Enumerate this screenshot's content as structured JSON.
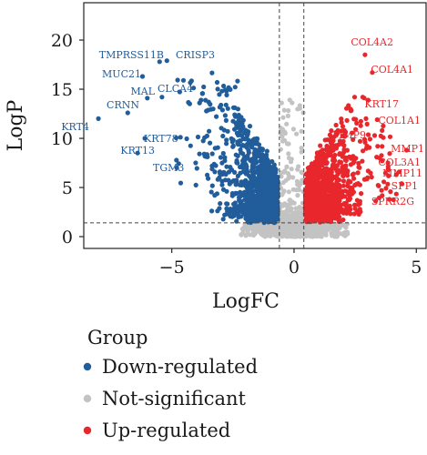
{
  "chart_data": {
    "type": "scatter",
    "xlabel": "LogFC",
    "ylabel": "LogP",
    "xlim": [
      -8.6,
      5.4
    ],
    "ylim": [
      -1.2,
      23.8
    ],
    "xticks": [
      -5,
      0,
      5
    ],
    "yticks": [
      0,
      5,
      10,
      15,
      20
    ],
    "grid": false,
    "fc_thresholds": [
      -0.6,
      0.4
    ],
    "p_threshold": 1.4,
    "legend": {
      "title": "Group",
      "placement": "bottom-left",
      "items": [
        {
          "label": "Down-regulated",
          "color": "#215d9a"
        },
        {
          "label": "Not-significant",
          "color": "#c3c3c3"
        },
        {
          "label": "Up-regulated",
          "color": "#e8272d"
        }
      ]
    },
    "colors": {
      "down": "#215d9a",
      "ns": "#c3c3c3",
      "up": "#e8272d"
    },
    "labeled_genes": [
      {
        "name": "TMPRSS11B",
        "x": -5.5,
        "y": 17.8,
        "group": "down"
      },
      {
        "name": "CRISP3",
        "x": -5.2,
        "y": 17.9,
        "group": "down"
      },
      {
        "name": "MUC21",
        "x": -6.2,
        "y": 16.3,
        "group": "down"
      },
      {
        "name": "MAL",
        "x": -6.0,
        "y": 14.1,
        "group": "down"
      },
      {
        "name": "CLCA4",
        "x": -5.4,
        "y": 14.2,
        "group": "down"
      },
      {
        "name": "CRNN",
        "x": -6.8,
        "y": 12.6,
        "group": "down"
      },
      {
        "name": "KRT4",
        "x": -8.0,
        "y": 12.0,
        "group": "down"
      },
      {
        "name": "KRT78",
        "x": -6.1,
        "y": 10.0,
        "group": "down"
      },
      {
        "name": "KRT13",
        "x": -6.4,
        "y": 8.5,
        "group": "down"
      },
      {
        "name": "TGM3",
        "x": -4.8,
        "y": 7.0,
        "group": "down"
      },
      {
        "name": "COL4A2",
        "x": 2.9,
        "y": 18.5,
        "group": "up"
      },
      {
        "name": "COL4A1",
        "x": 3.2,
        "y": 16.7,
        "group": "up"
      },
      {
        "name": "KRT17",
        "x": 3.4,
        "y": 11.9,
        "group": "up"
      },
      {
        "name": "COL1A1",
        "x": 3.6,
        "y": 10.8,
        "group": "up"
      },
      {
        "name": "MMP9",
        "x": 2.7,
        "y": 9.7,
        "group": "up"
      },
      {
        "name": "MMP1",
        "x": 4.6,
        "y": 8.8,
        "group": "up"
      },
      {
        "name": "COL3A1",
        "x": 3.5,
        "y": 8.0,
        "group": "up"
      },
      {
        "name": "MMP11",
        "x": 4.3,
        "y": 6.6,
        "group": "up"
      },
      {
        "name": "SPP1",
        "x": 4.4,
        "y": 5.4,
        "group": "up"
      },
      {
        "name": "SPRR2G",
        "x": 3.9,
        "y": 3.8,
        "group": "up"
      }
    ]
  }
}
